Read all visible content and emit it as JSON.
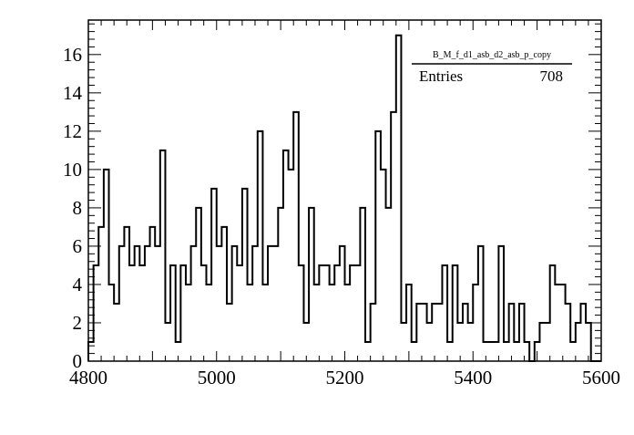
{
  "chart_data": {
    "type": "histogram",
    "title": "",
    "xlabel": "",
    "ylabel": "",
    "xlim": [
      4800,
      5600
    ],
    "ylim": [
      0,
      17.8
    ],
    "x_ticks": [
      4800,
      5000,
      5200,
      5400,
      5600
    ],
    "y_ticks": [
      0,
      2,
      4,
      6,
      8,
      10,
      12,
      14,
      16
    ],
    "bin_width": 8,
    "bin_edges_start": 4800,
    "values": [
      1,
      5,
      7,
      10,
      4,
      3,
      6,
      7,
      5,
      6,
      5,
      6,
      7,
      6,
      11,
      2,
      5,
      1,
      5,
      4,
      6,
      8,
      5,
      4,
      9,
      6,
      7,
      3,
      6,
      5,
      9,
      4,
      6,
      12,
      4,
      6,
      6,
      8,
      11,
      10,
      13,
      5,
      2,
      8,
      4,
      5,
      5,
      4,
      5,
      6,
      4,
      5,
      5,
      8,
      1,
      3,
      12,
      10,
      8,
      13,
      17,
      2,
      4,
      1,
      3,
      3,
      2,
      3,
      3,
      5,
      1,
      5,
      2,
      3,
      2,
      4,
      6,
      1,
      1,
      1,
      6,
      1,
      3,
      1,
      3,
      1,
      0,
      1,
      2,
      2,
      5,
      4,
      4,
      3,
      1,
      2,
      3,
      2,
      0,
      0
    ],
    "grid": false,
    "legend": "top-right",
    "stats_box": {
      "title": "B_M_f_d1_asb_d2_asb_p_copy",
      "entries_label": "Entries",
      "entries_value": "708"
    }
  }
}
